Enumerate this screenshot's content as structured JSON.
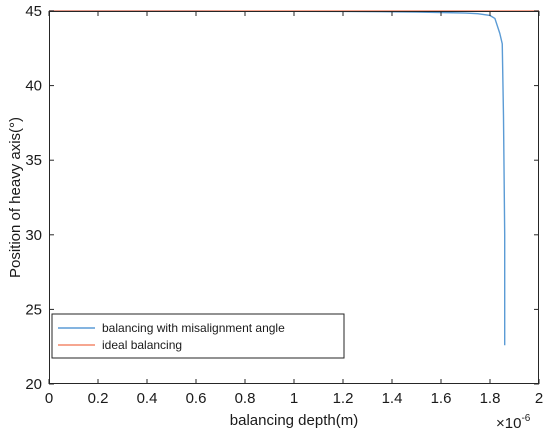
{
  "chart_data": {
    "type": "line",
    "title": "",
    "xlabel": "balancing depth(m)",
    "ylabel": "Position of heavy axis(°)",
    "x_exponent_label": "×10",
    "x_exponent_power": "-6",
    "x_tick_scale": 1e-06,
    "xlim": [
      0,
      2e-06
    ],
    "ylim": [
      20,
      45
    ],
    "x_ticks": [
      0,
      2e-07,
      4e-07,
      6e-07,
      8e-07,
      1e-06,
      1.2e-06,
      1.4e-06,
      1.6e-06,
      1.8e-06,
      2e-06
    ],
    "x_tick_labels": [
      "0",
      "0.2",
      "0.4",
      "0.6",
      "0.8",
      "1",
      "1.2",
      "1.4",
      "1.6",
      "1.8",
      "2"
    ],
    "y_ticks": [
      20,
      25,
      30,
      35,
      40,
      45
    ],
    "y_tick_labels": [
      "20",
      "25",
      "30",
      "35",
      "40",
      "45"
    ],
    "grid": false,
    "legend_position": "bottom-left",
    "series": [
      {
        "name": "balancing with misalignment angle",
        "color": "#5b9bd5",
        "x": [
          0,
          2e-07,
          4e-07,
          6e-07,
          8e-07,
          1e-06,
          1.2e-06,
          1.4e-06,
          1.5e-06,
          1.6e-06,
          1.7e-06,
          1.75e-06,
          1.8e-06,
          1.82e-06,
          1.84e-06,
          1.85e-06,
          1.855e-06,
          1.86e-06,
          1.86e-06
        ],
        "y": [
          45,
          45,
          45,
          45,
          44.99,
          44.98,
          44.97,
          44.95,
          44.93,
          44.9,
          44.86,
          44.82,
          44.7,
          44.5,
          43.5,
          42.8,
          38,
          30,
          22.6
        ]
      },
      {
        "name": "ideal balancing",
        "color": "#f4886b",
        "x": [
          0,
          2e-06
        ],
        "y": [
          45,
          45
        ]
      }
    ]
  }
}
